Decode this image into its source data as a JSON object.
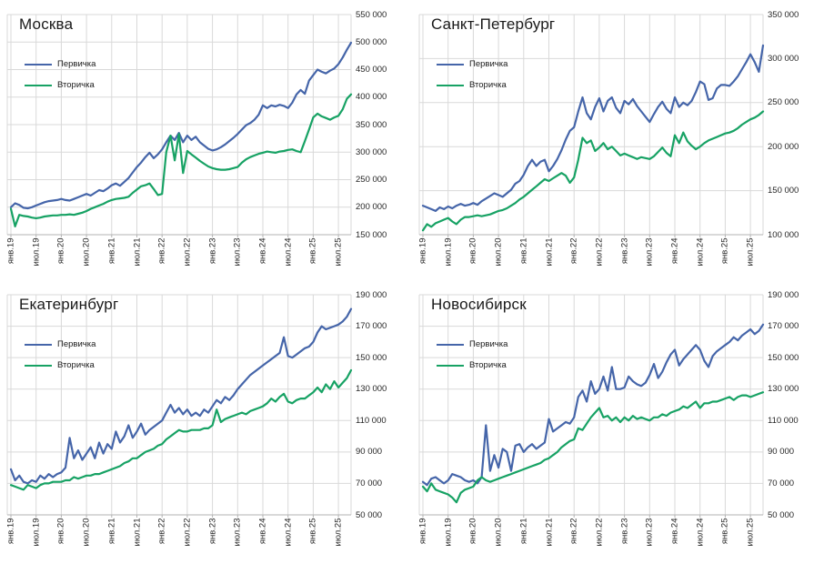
{
  "colors": {
    "primary": "#4565a9",
    "secondary": "#17a264",
    "grid": "#d9d9d9",
    "axis": "#b3b3b3",
    "background": "#ffffff",
    "text": "#262626",
    "title": "#1a1a1a"
  },
  "x_axis": {
    "tick_labels": [
      "янв.19",
      "июл.19",
      "янв.20",
      "июл.20",
      "янв.21",
      "июл.21",
      "янв.22",
      "июл.22",
      "янв.23",
      "июл.23",
      "янв.24",
      "июл.24",
      "янв.25",
      "июл.25"
    ],
    "tick_every_months": 6,
    "interval": "month"
  },
  "chart_data": [
    {
      "type": "line",
      "title": "Москва",
      "y_min": 150000,
      "y_max": 550000,
      "y_step": 50000,
      "y_tick_labels": [
        "550 000",
        "500 000",
        "450 000",
        "400 000",
        "350 000",
        "300 000",
        "250 000",
        "200 000",
        "150 000"
      ],
      "series": [
        {
          "name": "Первичка",
          "values": [
            200000,
            207000,
            204000,
            199000,
            198000,
            200000,
            203000,
            206000,
            209000,
            211000,
            212000,
            213000,
            215000,
            213000,
            212000,
            215000,
            218000,
            221000,
            224000,
            221000,
            226000,
            231000,
            229000,
            234000,
            240000,
            243000,
            239000,
            246000,
            253000,
            263000,
            273000,
            281000,
            291000,
            299000,
            289000,
            296000,
            305000,
            318000,
            330000,
            322000,
            335000,
            318000,
            330000,
            322000,
            328000,
            318000,
            312000,
            306000,
            303000,
            305000,
            309000,
            314000,
            320000,
            326000,
            333000,
            341000,
            349000,
            353000,
            359000,
            368000,
            385000,
            380000,
            385000,
            383000,
            386000,
            384000,
            380000,
            390000,
            405000,
            413000,
            406000,
            430000,
            440000,
            450000,
            446000,
            443000,
            448000,
            452000,
            460000,
            472000,
            486000,
            499000
          ]
        },
        {
          "name": "Вторичка",
          "values": [
            197000,
            165000,
            186000,
            184000,
            183000,
            181000,
            180000,
            181000,
            183000,
            184000,
            185000,
            185000,
            186000,
            186000,
            187000,
            186000,
            188000,
            190000,
            193000,
            197000,
            200000,
            203000,
            206000,
            210000,
            213000,
            215000,
            216000,
            217000,
            219000,
            226000,
            232000,
            238000,
            240000,
            243000,
            233000,
            222000,
            224000,
            300000,
            330000,
            285000,
            333000,
            262000,
            302000,
            296000,
            290000,
            284000,
            279000,
            274000,
            271000,
            269000,
            268000,
            268000,
            269000,
            271000,
            273000,
            281000,
            287000,
            291000,
            294000,
            297000,
            299000,
            301000,
            300000,
            299000,
            301000,
            302000,
            304000,
            305000,
            302000,
            300000,
            320000,
            341000,
            363000,
            370000,
            365000,
            362000,
            359000,
            363000,
            366000,
            378000,
            397000,
            405000
          ]
        }
      ]
    },
    {
      "type": "line",
      "title": "Санкт-Петербург",
      "y_min": 100000,
      "y_max": 350000,
      "y_step": 50000,
      "y_tick_labels": [
        "350 000",
        "300 000",
        "250 000",
        "200 000",
        "150 000",
        "100 000"
      ],
      "series": [
        {
          "name": "Первичка",
          "values": [
            133000,
            131000,
            129000,
            127000,
            131000,
            129000,
            132000,
            130000,
            133000,
            135000,
            133000,
            134000,
            136000,
            134000,
            138000,
            141000,
            144000,
            147000,
            145000,
            143000,
            147000,
            151000,
            158000,
            161000,
            168000,
            178000,
            185000,
            178000,
            183000,
            185000,
            172000,
            178000,
            186000,
            196000,
            208000,
            218000,
            222000,
            240000,
            256000,
            238000,
            231000,
            245000,
            255000,
            240000,
            252000,
            256000,
            244000,
            238000,
            252000,
            248000,
            254000,
            246000,
            240000,
            234000,
            228000,
            237000,
            245000,
            251000,
            243000,
            238000,
            256000,
            245000,
            250000,
            247000,
            252000,
            262000,
            274000,
            271000,
            253000,
            255000,
            266000,
            270000,
            270000,
            269000,
            274000,
            280000,
            288000,
            296000,
            305000,
            296000,
            285000,
            315000
          ]
        },
        {
          "name": "Вторичка",
          "values": [
            105000,
            112000,
            109000,
            113000,
            115000,
            117000,
            119000,
            115000,
            112000,
            117000,
            120000,
            120000,
            121000,
            122000,
            121000,
            122000,
            123000,
            125000,
            127000,
            128000,
            130000,
            133000,
            136000,
            140000,
            143000,
            147000,
            151000,
            155000,
            159000,
            163000,
            161000,
            164000,
            167000,
            170000,
            167000,
            159000,
            165000,
            185000,
            210000,
            204000,
            207000,
            195000,
            199000,
            204000,
            197000,
            200000,
            195000,
            190000,
            192000,
            190000,
            188000,
            186000,
            188000,
            187000,
            186000,
            189000,
            194000,
            199000,
            193000,
            189000,
            213000,
            204000,
            216000,
            206000,
            201000,
            197000,
            200000,
            204000,
            207000,
            209000,
            211000,
            213000,
            215000,
            216000,
            218000,
            221000,
            225000,
            228000,
            231000,
            233000,
            236000,
            240000
          ]
        }
      ]
    },
    {
      "type": "line",
      "title": "Екатеринбург",
      "y_min": 50000,
      "y_max": 190000,
      "y_step": 20000,
      "y_tick_labels": [
        "190 000",
        "170 000",
        "150 000",
        "130 000",
        "110 000",
        "90 000",
        "70 000",
        "50 000"
      ],
      "series": [
        {
          "name": "Первичка",
          "values": [
            79000,
            72000,
            75000,
            71000,
            70000,
            72000,
            71000,
            75000,
            73000,
            76000,
            74000,
            76000,
            77000,
            80000,
            99000,
            86000,
            91000,
            85000,
            89000,
            93000,
            86000,
            96000,
            89000,
            95000,
            92000,
            103000,
            96000,
            100000,
            107000,
            99000,
            103000,
            108000,
            101000,
            104000,
            106000,
            108000,
            110000,
            115000,
            120000,
            115000,
            118000,
            114000,
            117000,
            113000,
            115000,
            113000,
            117000,
            115000,
            119000,
            123000,
            121000,
            125000,
            123000,
            126000,
            130000,
            133000,
            136000,
            139000,
            141000,
            143000,
            145000,
            147000,
            149000,
            151000,
            153000,
            163000,
            151000,
            150000,
            152000,
            154000,
            156000,
            157000,
            160000,
            166000,
            170000,
            168000,
            169000,
            170000,
            171000,
            173000,
            176000,
            181000
          ]
        },
        {
          "name": "Вторичка",
          "values": [
            69000,
            68000,
            67000,
            66000,
            69000,
            68000,
            67000,
            69000,
            70000,
            70000,
            71000,
            71000,
            71000,
            72000,
            72000,
            74000,
            73000,
            74000,
            75000,
            75000,
            76000,
            76000,
            77000,
            78000,
            79000,
            80000,
            81000,
            83000,
            84000,
            86000,
            86000,
            88000,
            90000,
            91000,
            92000,
            94000,
            95000,
            98000,
            100000,
            102000,
            104000,
            103000,
            103000,
            104000,
            104000,
            104000,
            105000,
            105000,
            107000,
            117000,
            109000,
            111000,
            112000,
            113000,
            114000,
            115000,
            114000,
            116000,
            117000,
            118000,
            119000,
            121000,
            124000,
            122000,
            125000,
            127000,
            122000,
            121000,
            123000,
            124000,
            124000,
            126000,
            128000,
            131000,
            128000,
            133000,
            130000,
            135000,
            131000,
            134000,
            137000,
            142000
          ]
        }
      ]
    },
    {
      "type": "line",
      "title": "Новосибирск",
      "y_min": 50000,
      "y_max": 190000,
      "y_step": 20000,
      "y_tick_labels": [
        "190 000",
        "170 000",
        "150 000",
        "130 000",
        "110 000",
        "90 000",
        "70 000",
        "50 000"
      ],
      "series": [
        {
          "name": "Первичка",
          "values": [
            71000,
            69000,
            73000,
            74000,
            72000,
            70000,
            72000,
            76000,
            75000,
            74000,
            72000,
            71000,
            72000,
            70000,
            74000,
            107000,
            78000,
            88000,
            80000,
            92000,
            90000,
            78000,
            94000,
            95000,
            90000,
            93000,
            95000,
            92000,
            94000,
            96000,
            111000,
            103000,
            105000,
            107000,
            109000,
            108000,
            112000,
            125000,
            129000,
            122000,
            135000,
            127000,
            130000,
            138000,
            129000,
            144000,
            130000,
            130000,
            131000,
            138000,
            135000,
            133000,
            132000,
            134000,
            139000,
            146000,
            137000,
            141000,
            147000,
            152000,
            155000,
            145000,
            149000,
            152000,
            155000,
            158000,
            155000,
            148000,
            144000,
            151000,
            154000,
            156000,
            158000,
            160000,
            163000,
            161000,
            164000,
            166000,
            168000,
            165000,
            167000,
            171000
          ]
        },
        {
          "name": "Вторичка",
          "values": [
            68000,
            65000,
            70000,
            66000,
            65000,
            64000,
            63000,
            61000,
            58000,
            64000,
            66000,
            67000,
            68000,
            72000,
            74000,
            72000,
            71000,
            72000,
            73000,
            74000,
            75000,
            76000,
            77000,
            78000,
            79000,
            80000,
            81000,
            82000,
            83000,
            85000,
            86000,
            88000,
            90000,
            93000,
            95000,
            97000,
            98000,
            105000,
            104000,
            108000,
            112000,
            115000,
            118000,
            112000,
            113000,
            110000,
            112000,
            109000,
            112000,
            110000,
            113000,
            111000,
            112000,
            111000,
            110000,
            112000,
            112000,
            114000,
            113000,
            115000,
            116000,
            117000,
            119000,
            118000,
            120000,
            122000,
            118000,
            121000,
            121000,
            122000,
            122000,
            123000,
            124000,
            125000,
            123000,
            125000,
            126000,
            126000,
            125000,
            126000,
            127000,
            128000
          ]
        }
      ]
    }
  ]
}
